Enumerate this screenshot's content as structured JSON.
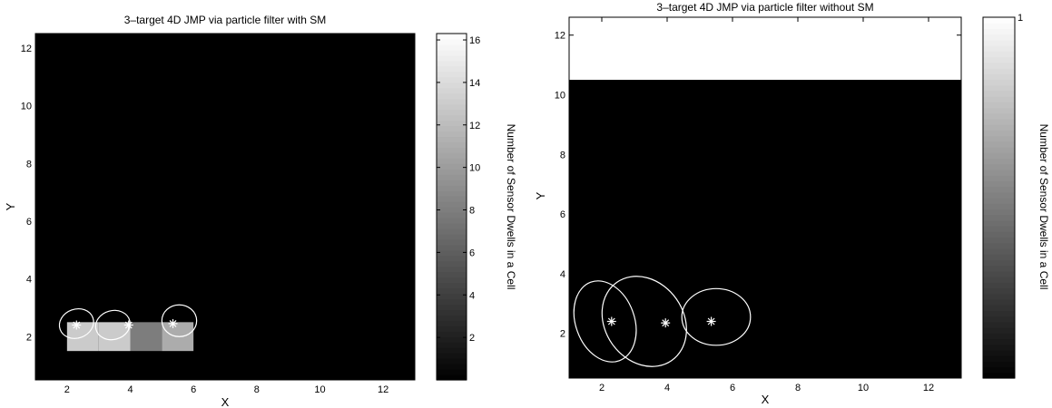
{
  "chart_data": [
    {
      "type": "heatmap",
      "title": "3–target 4D JMP via particle filter with SM",
      "xlabel": "X",
      "ylabel": "Y",
      "xlim": [
        1,
        13
      ],
      "ylim": [
        0.5,
        12.5
      ],
      "xticks": [
        2,
        4,
        6,
        8,
        10,
        12
      ],
      "yticks": [
        2,
        4,
        6,
        8,
        10,
        12
      ],
      "background_value": 0,
      "cells": [
        {
          "x0": 2,
          "x1": 3,
          "y0": 1.5,
          "y1": 2.5,
          "value": 13
        },
        {
          "x0": 3,
          "x1": 4,
          "y0": 1.5,
          "y1": 2.5,
          "value": 13
        },
        {
          "x0": 4,
          "x1": 5,
          "y0": 1.5,
          "y1": 2.5,
          "value": 8
        },
        {
          "x0": 5,
          "x1": 6,
          "y0": 1.5,
          "y1": 2.5,
          "value": 11
        }
      ],
      "targets": [
        {
          "x": 2.3,
          "y": 2.4
        },
        {
          "x": 3.95,
          "y": 2.4
        },
        {
          "x": 5.35,
          "y": 2.45
        }
      ],
      "ellipses": [
        {
          "cx": 2.3,
          "cy": 2.45,
          "rx": 0.55,
          "ry": 0.5,
          "angle": 20
        },
        {
          "cx": 3.45,
          "cy": 2.4,
          "rx": 0.55,
          "ry": 0.5,
          "angle": 15
        },
        {
          "cx": 5.55,
          "cy": 2.55,
          "rx": 0.55,
          "ry": 0.55,
          "angle": 0
        }
      ],
      "colorbar": {
        "label": "Number of Sensor Dwells in a Cell",
        "range": [
          0,
          16.3
        ],
        "ticks": [
          2,
          4,
          6,
          8,
          10,
          12,
          14,
          16
        ]
      }
    },
    {
      "type": "heatmap",
      "title": "3–target 4D JMP via particle filter without SM",
      "xlabel": "X",
      "ylabel": "Y",
      "xlim": [
        1,
        13
      ],
      "ylim": [
        0.5,
        12.6
      ],
      "xticks": [
        2,
        4,
        6,
        8,
        10,
        12
      ],
      "yticks": [
        2,
        4,
        6,
        8,
        10,
        12
      ],
      "background_value": 0,
      "cells": [
        {
          "x0": 1,
          "x1": 13,
          "y0": 10.5,
          "y1": 12.6,
          "value": 1
        }
      ],
      "targets": [
        {
          "x": 2.3,
          "y": 2.4
        },
        {
          "x": 3.95,
          "y": 2.35
        },
        {
          "x": 5.35,
          "y": 2.4
        }
      ],
      "ellipses": [
        {
          "cx": 2.1,
          "cy": 2.4,
          "rx": 0.9,
          "ry": 1.4,
          "angle": 20
        },
        {
          "cx": 3.3,
          "cy": 2.4,
          "rx": 1.2,
          "ry": 1.6,
          "angle": 35
        },
        {
          "cx": 5.5,
          "cy": 2.55,
          "rx": 1.05,
          "ry": 0.95,
          "angle": 0
        }
      ],
      "colorbar": {
        "label": "Number of Sensor Dwells in a Cell",
        "range": [
          0,
          1
        ],
        "ticks": [
          1
        ]
      }
    }
  ]
}
